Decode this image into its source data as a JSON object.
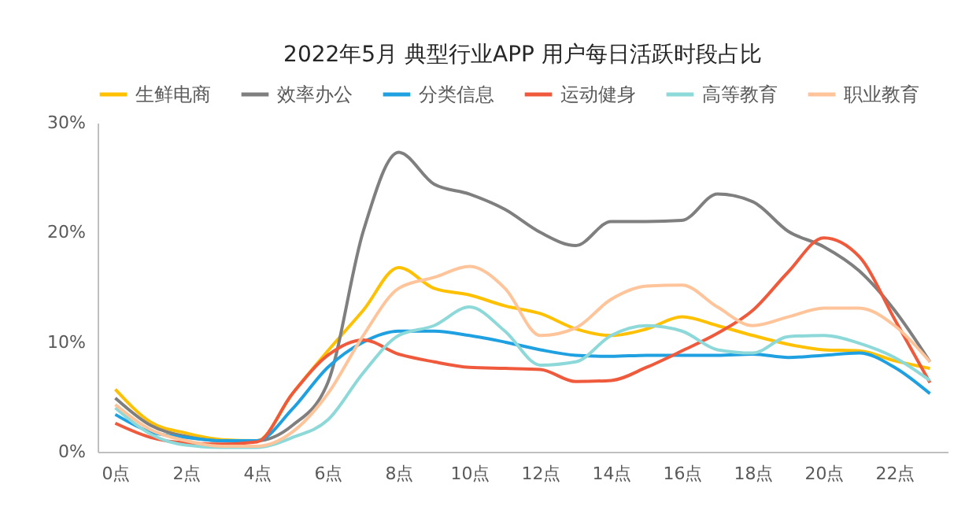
{
  "chart_data": {
    "type": "line",
    "title": "2022年5月 典型行业APP 用户每日活跃时段占比",
    "x": [
      0,
      1,
      2,
      3,
      4,
      5,
      6,
      7,
      8,
      9,
      10,
      11,
      12,
      13,
      14,
      15,
      16,
      17,
      18,
      19,
      20,
      21,
      22,
      23
    ],
    "xlim": [
      -0.5,
      23.5
    ],
    "xticks": [
      {
        "value": 0,
        "label": "0点"
      },
      {
        "value": 2,
        "label": "2点"
      },
      {
        "value": 4,
        "label": "4点"
      },
      {
        "value": 6,
        "label": "6点"
      },
      {
        "value": 8,
        "label": "8点"
      },
      {
        "value": 10,
        "label": "10点"
      },
      {
        "value": 12,
        "label": "12点"
      },
      {
        "value": 14,
        "label": "14点"
      },
      {
        "value": 16,
        "label": "16点"
      },
      {
        "value": 18,
        "label": "18点"
      },
      {
        "value": 20,
        "label": "20点"
      },
      {
        "value": 22,
        "label": "22点"
      }
    ],
    "ylim": [
      0,
      30
    ],
    "yticks": [
      {
        "value": 0,
        "label": "0%"
      },
      {
        "value": 10,
        "label": "10%"
      },
      {
        "value": 20,
        "label": "20%"
      },
      {
        "value": 30,
        "label": "30%"
      }
    ],
    "grid": false,
    "legend": "top",
    "marker": "none",
    "line_style": "solid",
    "series": [
      {
        "name": "生鲜电商",
        "color": "#ffc000",
        "values": [
          5.7,
          2.7,
          1.7,
          1.1,
          1.0,
          5.3,
          9.2,
          12.9,
          16.8,
          14.9,
          14.3,
          13.3,
          12.6,
          11.2,
          10.6,
          11.2,
          12.3,
          11.5,
          10.6,
          9.8,
          9.3,
          9.2,
          8.3,
          7.6
        ]
      },
      {
        "name": "效率办公",
        "color": "#7f7f7f",
        "values": [
          4.9,
          2.4,
          1.4,
          1.0,
          1.0,
          2.4,
          6.3,
          20.1,
          27.3,
          24.4,
          23.5,
          22.1,
          20.0,
          18.8,
          21.0,
          21.0,
          21.1,
          23.5,
          22.8,
          20.1,
          18.7,
          16.5,
          12.9,
          8.2
        ]
      },
      {
        "name": "分类信息",
        "color": "#1fa0e0",
        "values": [
          3.4,
          1.8,
          1.3,
          1.0,
          1.0,
          3.9,
          7.7,
          10.0,
          11.0,
          11.0,
          10.6,
          10.0,
          9.3,
          8.8,
          8.7,
          8.8,
          8.8,
          8.8,
          8.9,
          8.6,
          8.8,
          9.0,
          7.7,
          5.3
        ]
      },
      {
        "name": "运动健身",
        "color": "#f05a3c",
        "values": [
          2.6,
          1.3,
          0.8,
          0.7,
          0.9,
          5.3,
          8.8,
          10.2,
          8.9,
          8.2,
          7.7,
          7.6,
          7.5,
          6.4,
          6.5,
          7.7,
          9.2,
          10.8,
          12.9,
          16.4,
          19.5,
          17.8,
          12.1,
          6.3
        ]
      },
      {
        "name": "高等教育",
        "color": "#8dd8d8",
        "values": [
          4.0,
          1.6,
          0.6,
          0.4,
          0.4,
          1.3,
          2.9,
          7.2,
          10.6,
          11.5,
          13.2,
          11.0,
          7.9,
          8.2,
          10.6,
          11.5,
          11.0,
          9.3,
          9.0,
          10.5,
          10.6,
          9.9,
          8.6,
          6.5
        ]
      },
      {
        "name": "职业教育",
        "color": "#ffc49a",
        "values": [
          4.3,
          2.0,
          1.0,
          0.5,
          0.5,
          1.8,
          5.3,
          10.6,
          14.9,
          15.9,
          16.9,
          14.9,
          10.6,
          11.3,
          13.9,
          15.1,
          15.2,
          13.2,
          11.5,
          12.3,
          13.1,
          13.1,
          11.5,
          8.2
        ]
      }
    ]
  }
}
